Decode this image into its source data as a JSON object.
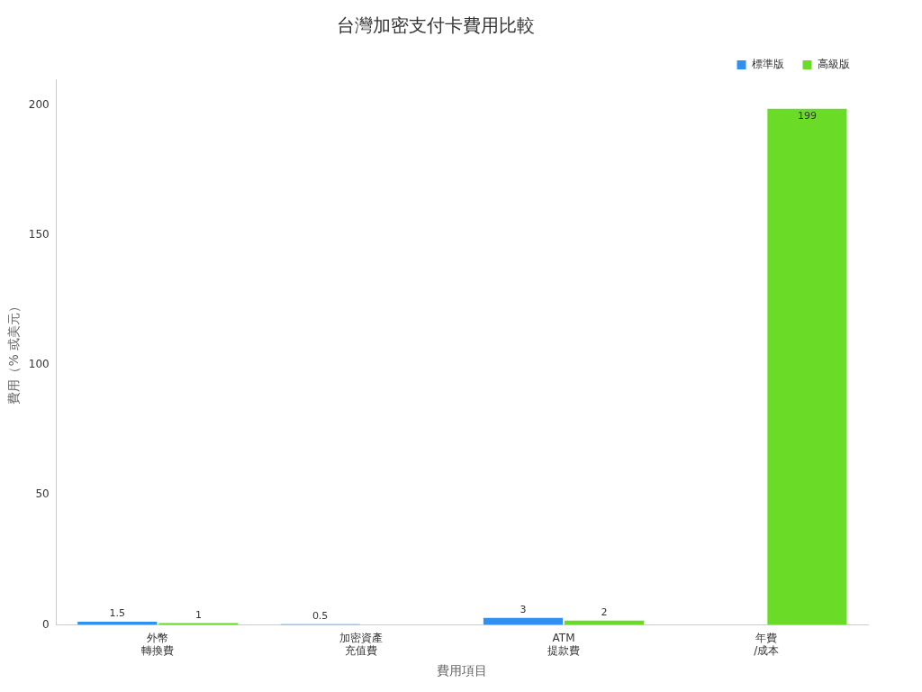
{
  "chart_data": {
    "type": "bar",
    "title": "台灣加密支付卡費用比較",
    "xlabel": "費用項目",
    "ylabel": "費用（% 或美元）",
    "categories": [
      "外幣轉換費",
      "加密資產充值費",
      "ATM提款費",
      "年費/成本"
    ],
    "series": [
      {
        "name": "標準版",
        "color": "#3090f0",
        "values": [
          1.5,
          0.5,
          3,
          0
        ],
        "value_labels": [
          "1.5",
          "0.5",
          "3",
          null
        ]
      },
      {
        "name": "高級版",
        "color": "#6adb26",
        "values": [
          1,
          0,
          2,
          199
        ],
        "value_labels": [
          "1",
          null,
          "2",
          "199"
        ]
      }
    ],
    "ylim": [
      0,
      210
    ],
    "yticks": [
      0,
      50,
      100,
      150,
      200
    ],
    "grid": false,
    "legend": "top right"
  }
}
